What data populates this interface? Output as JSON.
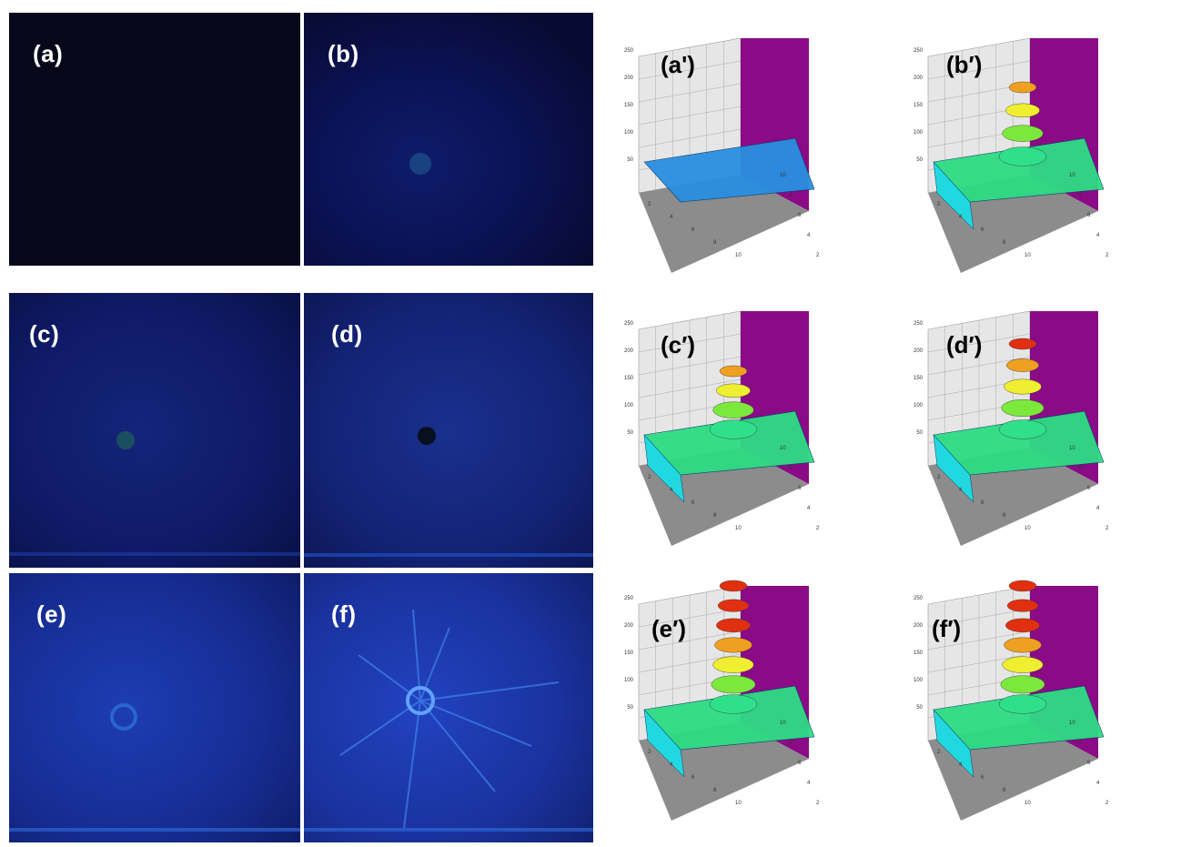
{
  "photo_panels": [
    {
      "label": "(a)"
    },
    {
      "label": "(b)"
    },
    {
      "label": "(c)"
    },
    {
      "label": "(d)"
    },
    {
      "label": "(e)"
    },
    {
      "label": "(f)"
    }
  ],
  "surface_panels": [
    {
      "label": "(a')",
      "z_ticks": [
        "250",
        "200",
        "150",
        "100",
        "50"
      ],
      "x_ticks": [
        "2",
        "4",
        "6",
        "8",
        "10"
      ],
      "y_ticks": [
        "2",
        "4",
        "6",
        "8",
        "10"
      ],
      "peak_level": 0.0
    },
    {
      "label": "(b′)",
      "z_ticks": [
        "250",
        "200",
        "150",
        "100",
        "50"
      ],
      "x_ticks": [
        "2",
        "4",
        "6",
        "8",
        "10"
      ],
      "y_ticks": [
        "2",
        "4",
        "6",
        "8",
        "10"
      ],
      "peak_level": 0.55
    },
    {
      "label": "(c′)",
      "z_ticks": [
        "250",
        "200",
        "150",
        "100",
        "50"
      ],
      "x_ticks": [
        "2",
        "4",
        "6",
        "8",
        "10"
      ],
      "y_ticks": [
        "2",
        "4",
        "6",
        "8",
        "10"
      ],
      "peak_level": 0.45
    },
    {
      "label": "(d′)",
      "z_ticks": [
        "250",
        "200",
        "150",
        "100",
        "50"
      ],
      "x_ticks": [
        "2",
        "4",
        "6",
        "8",
        "10"
      ],
      "y_ticks": [
        "2",
        "4",
        "6",
        "8",
        "10"
      ],
      "peak_level": 0.7
    },
    {
      "label": "(e′)",
      "z_ticks": [
        "250",
        "200",
        "150",
        "100",
        "50"
      ],
      "x_ticks": [
        "2",
        "4",
        "6",
        "8",
        "10"
      ],
      "y_ticks": [
        "2",
        "4",
        "6",
        "8",
        "10"
      ],
      "peak_level": 1.0
    },
    {
      "label": "(f′)",
      "z_ticks": [
        "250",
        "200",
        "150",
        "100",
        "50"
      ],
      "x_ticks": [
        "2",
        "4",
        "6",
        "8",
        "10"
      ],
      "y_ticks": [
        "2",
        "4",
        "6",
        "8",
        "10"
      ],
      "peak_level": 1.0
    }
  ],
  "colors": {
    "wall_back": "#8b0a86",
    "floor": "#8c8c8c",
    "grid_wall": "#e6e6e6"
  }
}
